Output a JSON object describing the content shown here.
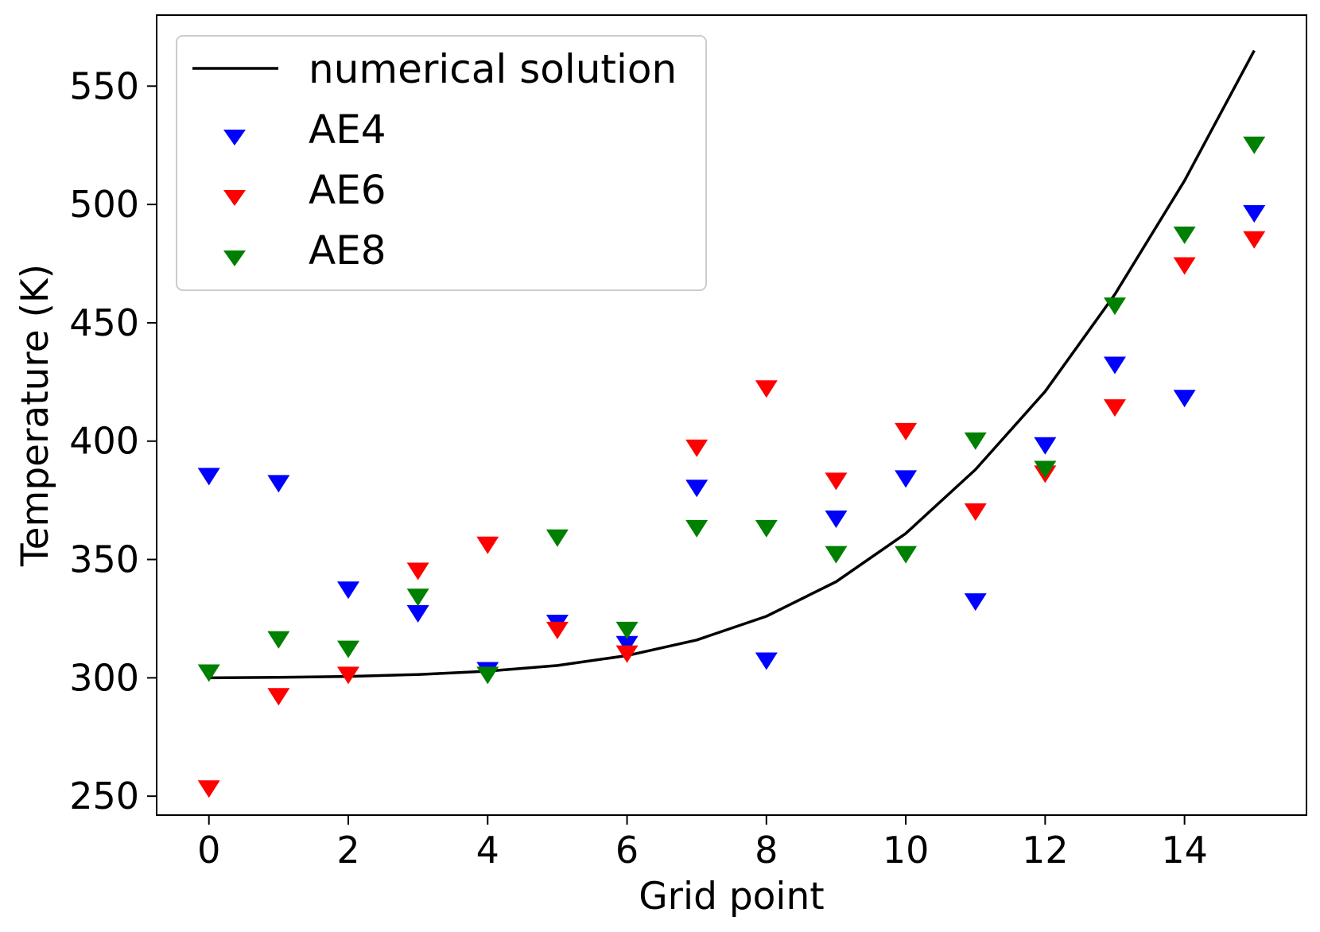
{
  "chart_data": {
    "type": "line",
    "xlabel": "Grid point",
    "ylabel": "Temperature (K)",
    "xlim": [
      -0.75,
      15.75
    ],
    "ylim": [
      242,
      580
    ],
    "xticks": [
      "0",
      "2",
      "4",
      "6",
      "8",
      "10",
      "12",
      "14"
    ],
    "yticks": [
      "250",
      "300",
      "350",
      "400",
      "450",
      "500",
      "550"
    ],
    "x": [
      0,
      1,
      2,
      3,
      4,
      5,
      6,
      7,
      8,
      9,
      10,
      11,
      12,
      13,
      14,
      15
    ],
    "series": [
      {
        "name": "numerical solution",
        "kind": "line",
        "color": "#000000",
        "values": [
          300,
          300.2,
          300.6,
          301.4,
          302.8,
          305.2,
          309.4,
          316,
          326,
          340.6,
          361,
          388,
          421,
          462,
          510,
          565
        ]
      },
      {
        "name": "AE4",
        "kind": "scatter",
        "marker": "triangle-down",
        "color": "#0000ff",
        "values": [
          386,
          383,
          338,
          328,
          304,
          324,
          315,
          381,
          308,
          368,
          385,
          333,
          399,
          433,
          419,
          497
        ]
      },
      {
        "name": "AE6",
        "kind": "scatter",
        "marker": "triangle-down",
        "color": "#ff0000",
        "values": [
          254,
          293,
          302,
          346,
          357,
          321,
          311,
          398,
          423,
          384,
          405,
          371,
          387,
          415,
          475,
          486
        ]
      },
      {
        "name": "AE8",
        "kind": "scatter",
        "marker": "triangle-down",
        "color": "#008000",
        "values": [
          303,
          317,
          313,
          335,
          302,
          360,
          321,
          364,
          364,
          353,
          353,
          401,
          389,
          458,
          488,
          526
        ]
      }
    ],
    "legend": {
      "location": "top-left",
      "entries": [
        "numerical solution",
        "AE4",
        "AE6",
        "AE8"
      ]
    }
  }
}
